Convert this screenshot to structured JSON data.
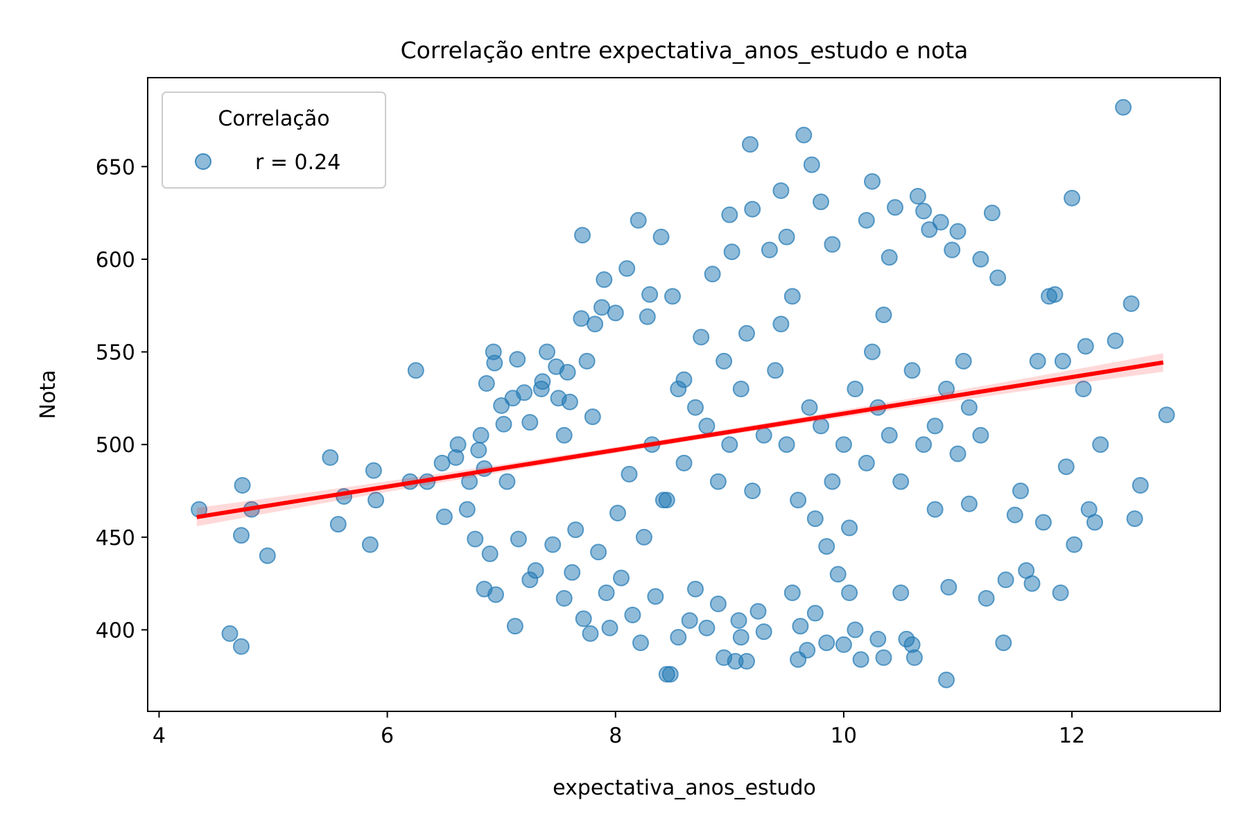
{
  "chart_data": {
    "type": "scatter",
    "title": "Correlação entre expectativa_anos_estudo e nota",
    "xlabel": "expectativa_anos_estudo",
    "ylabel": "Nota",
    "xlim": [
      3.9,
      13.3
    ],
    "ylim": [
      356,
      698
    ],
    "xticks": [
      4,
      6,
      8,
      10,
      12
    ],
    "yticks": [
      400,
      450,
      500,
      550,
      600,
      650
    ],
    "grid": false,
    "legend": {
      "title": "Correlação",
      "placement": "top-left",
      "entries": [
        {
          "label": "r = 0.24"
        }
      ]
    },
    "series": [
      {
        "name": "r = 0.24",
        "color": "#1f77b4",
        "points": [
          [
            4.35,
            465
          ],
          [
            4.62,
            398
          ],
          [
            4.72,
            391
          ],
          [
            4.72,
            451
          ],
          [
            4.73,
            478
          ],
          [
            4.81,
            465
          ],
          [
            4.95,
            440
          ],
          [
            5.5,
            493
          ],
          [
            5.57,
            457
          ],
          [
            5.62,
            472
          ],
          [
            5.85,
            446
          ],
          [
            5.88,
            486
          ],
          [
            5.9,
            470
          ],
          [
            6.2,
            480
          ],
          [
            6.25,
            540
          ],
          [
            6.35,
            480
          ],
          [
            6.48,
            490
          ],
          [
            6.5,
            461
          ],
          [
            6.6,
            493
          ],
          [
            6.62,
            500
          ],
          [
            6.7,
            465
          ],
          [
            6.72,
            480
          ],
          [
            6.77,
            449
          ],
          [
            6.8,
            497
          ],
          [
            6.82,
            505
          ],
          [
            6.85,
            487
          ],
          [
            6.87,
            533
          ],
          [
            6.85,
            422
          ],
          [
            6.9,
            441
          ],
          [
            6.93,
            550
          ],
          [
            6.94,
            544
          ],
          [
            6.95,
            419
          ],
          [
            7.0,
            521
          ],
          [
            7.02,
            511
          ],
          [
            7.05,
            480
          ],
          [
            7.1,
            525
          ],
          [
            7.12,
            402
          ],
          [
            7.14,
            546
          ],
          [
            7.15,
            449
          ],
          [
            7.2,
            528
          ],
          [
            7.25,
            512
          ],
          [
            7.25,
            427
          ],
          [
            7.3,
            432
          ],
          [
            7.35,
            530
          ],
          [
            7.36,
            534
          ],
          [
            7.4,
            550
          ],
          [
            7.45,
            446
          ],
          [
            7.48,
            542
          ],
          [
            7.5,
            525
          ],
          [
            7.55,
            505
          ],
          [
            7.55,
            417
          ],
          [
            7.58,
            539
          ],
          [
            7.6,
            523
          ],
          [
            7.62,
            431
          ],
          [
            7.65,
            454
          ],
          [
            7.7,
            568
          ],
          [
            7.71,
            613
          ],
          [
            7.72,
            406
          ],
          [
            7.75,
            545
          ],
          [
            7.78,
            398
          ],
          [
            7.8,
            515
          ],
          [
            7.82,
            565
          ],
          [
            7.85,
            442
          ],
          [
            7.88,
            574
          ],
          [
            7.9,
            589
          ],
          [
            7.92,
            420
          ],
          [
            7.95,
            401
          ],
          [
            8.0,
            571
          ],
          [
            8.02,
            463
          ],
          [
            8.05,
            428
          ],
          [
            8.1,
            595
          ],
          [
            8.12,
            484
          ],
          [
            8.15,
            408
          ],
          [
            8.2,
            621
          ],
          [
            8.22,
            393
          ],
          [
            8.25,
            450
          ],
          [
            8.28,
            569
          ],
          [
            8.3,
            581
          ],
          [
            8.35,
            418
          ],
          [
            8.4,
            612
          ],
          [
            8.42,
            470
          ],
          [
            8.45,
            376
          ],
          [
            8.48,
            376
          ],
          [
            8.5,
            580
          ],
          [
            8.55,
            396
          ],
          [
            8.6,
            535
          ],
          [
            8.65,
            405
          ],
          [
            8.7,
            422
          ],
          [
            8.75,
            558
          ],
          [
            8.8,
            401
          ],
          [
            8.85,
            592
          ],
          [
            8.9,
            414
          ],
          [
            8.95,
            385
          ],
          [
            9.0,
            624
          ],
          [
            9.02,
            604
          ],
          [
            9.05,
            383
          ],
          [
            9.08,
            405
          ],
          [
            9.1,
            396
          ],
          [
            9.15,
            383
          ],
          [
            9.18,
            662
          ],
          [
            9.2,
            627
          ],
          [
            9.25,
            410
          ],
          [
            9.3,
            399
          ],
          [
            9.35,
            605
          ],
          [
            9.45,
            637
          ],
          [
            9.5,
            612
          ],
          [
            9.55,
            420
          ],
          [
            9.6,
            384
          ],
          [
            9.62,
            402
          ],
          [
            9.65,
            667
          ],
          [
            9.68,
            389
          ],
          [
            9.72,
            651
          ],
          [
            9.75,
            409
          ],
          [
            9.8,
            631
          ],
          [
            9.85,
            393
          ],
          [
            9.9,
            608
          ],
          [
            9.95,
            430
          ],
          [
            10.0,
            392
          ],
          [
            10.05,
            420
          ],
          [
            10.1,
            400
          ],
          [
            10.15,
            384
          ],
          [
            10.2,
            621
          ],
          [
            10.25,
            642
          ],
          [
            10.3,
            395
          ],
          [
            10.35,
            385
          ],
          [
            10.4,
            601
          ],
          [
            10.45,
            628
          ],
          [
            10.5,
            420
          ],
          [
            10.55,
            395
          ],
          [
            10.6,
            392
          ],
          [
            10.62,
            385
          ],
          [
            10.65,
            634
          ],
          [
            10.7,
            626
          ],
          [
            10.75,
            616
          ],
          [
            10.8,
            465
          ],
          [
            10.85,
            620
          ],
          [
            10.9,
            373
          ],
          [
            10.92,
            423
          ],
          [
            10.95,
            605
          ],
          [
            11.0,
            615
          ],
          [
            11.1,
            468
          ],
          [
            11.2,
            600
          ],
          [
            11.25,
            417
          ],
          [
            11.3,
            625
          ],
          [
            11.35,
            590
          ],
          [
            11.4,
            393
          ],
          [
            11.42,
            427
          ],
          [
            11.5,
            462
          ],
          [
            11.55,
            475
          ],
          [
            11.6,
            432
          ],
          [
            11.65,
            425
          ],
          [
            11.7,
            545
          ],
          [
            11.75,
            458
          ],
          [
            11.8,
            580
          ],
          [
            11.85,
            581
          ],
          [
            11.9,
            420
          ],
          [
            11.92,
            545
          ],
          [
            11.95,
            488
          ],
          [
            12.0,
            633
          ],
          [
            12.02,
            446
          ],
          [
            12.1,
            530
          ],
          [
            12.12,
            553
          ],
          [
            12.15,
            465
          ],
          [
            12.2,
            458
          ],
          [
            12.25,
            500
          ],
          [
            12.38,
            556
          ],
          [
            12.45,
            682
          ],
          [
            12.52,
            576
          ],
          [
            12.55,
            460
          ],
          [
            12.6,
            478
          ],
          [
            12.83,
            516
          ],
          [
            8.32,
            500
          ],
          [
            8.45,
            470
          ],
          [
            8.6,
            490
          ],
          [
            8.7,
            520
          ],
          [
            8.8,
            510
          ],
          [
            8.9,
            480
          ],
          [
            9.0,
            500
          ],
          [
            9.1,
            530
          ],
          [
            9.2,
            475
          ],
          [
            9.3,
            505
          ],
          [
            9.4,
            540
          ],
          [
            9.5,
            500
          ],
          [
            9.6,
            470
          ],
          [
            9.7,
            520
          ],
          [
            9.8,
            510
          ],
          [
            9.9,
            480
          ],
          [
            10.0,
            500
          ],
          [
            10.1,
            530
          ],
          [
            10.2,
            490
          ],
          [
            10.3,
            520
          ],
          [
            10.4,
            505
          ],
          [
            10.5,
            480
          ],
          [
            10.6,
            540
          ],
          [
            10.7,
            500
          ],
          [
            10.8,
            510
          ],
          [
            10.9,
            530
          ],
          [
            11.0,
            495
          ],
          [
            11.1,
            520
          ],
          [
            11.2,
            505
          ],
          [
            9.15,
            560
          ],
          [
            9.45,
            565
          ],
          [
            9.75,
            460
          ],
          [
            10.05,
            455
          ],
          [
            10.35,
            570
          ],
          [
            9.55,
            580
          ],
          [
            9.85,
            445
          ],
          [
            8.95,
            545
          ],
          [
            10.25,
            550
          ],
          [
            8.55,
            530
          ],
          [
            11.05,
            545
          ]
        ]
      }
    ],
    "regression": {
      "slope": 9.85,
      "intercept": 418.2,
      "x_range": [
        4.33,
        12.8
      ],
      "ci_halfwidth_edge": 5.0,
      "ci_halfwidth_center": 1.6,
      "color": "#ff0000"
    }
  }
}
